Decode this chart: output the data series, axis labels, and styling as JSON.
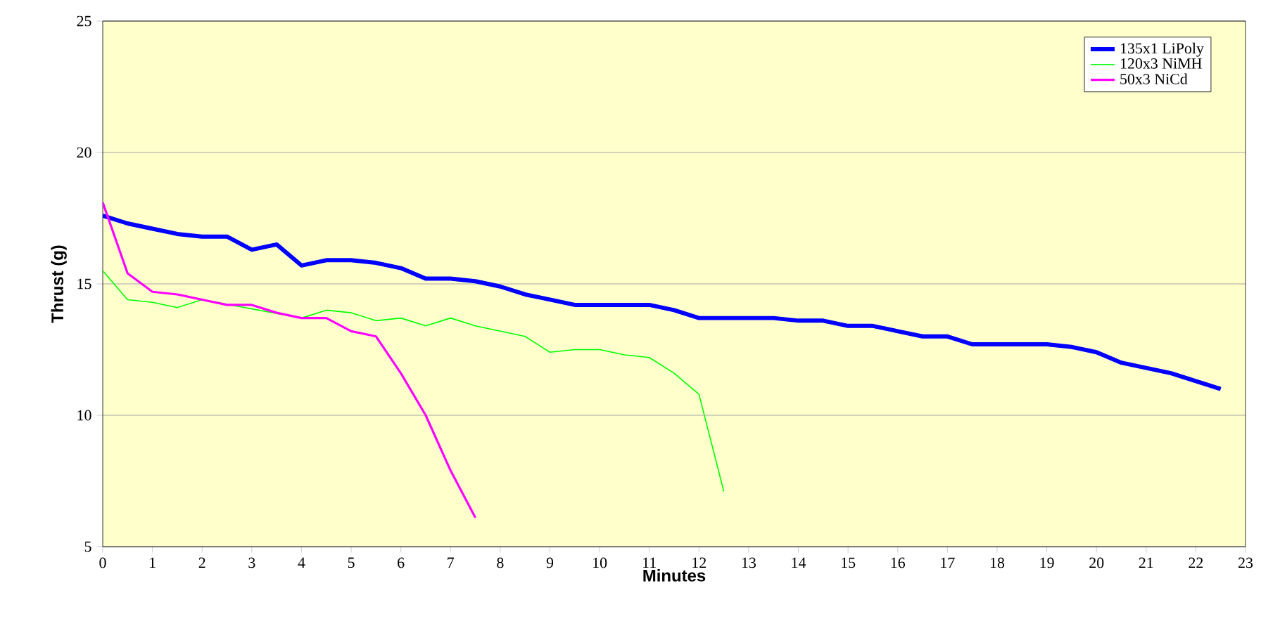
{
  "chart_data": {
    "type": "line",
    "xlabel": "Minutes",
    "ylabel": "Thrust (g)",
    "xlim": [
      0,
      23
    ],
    "ylim": [
      5,
      25
    ],
    "xticks": [
      0,
      1,
      2,
      3,
      4,
      5,
      6,
      7,
      8,
      9,
      10,
      11,
      12,
      13,
      14,
      15,
      16,
      17,
      18,
      19,
      20,
      21,
      22,
      23
    ],
    "yticks": [
      5,
      10,
      15,
      20,
      25
    ],
    "grid": "y",
    "legend": "top right",
    "series": [
      {
        "name": "135x1 LiPoly",
        "color": "#0000ff",
        "x": [
          0,
          0.5,
          1,
          1.5,
          2,
          2.5,
          3,
          3.5,
          4,
          4.5,
          5,
          5.5,
          6,
          6.5,
          7,
          7.5,
          8,
          8.5,
          9,
          9.5,
          10,
          10.5,
          11,
          11.5,
          12,
          12.5,
          13,
          13.5,
          14,
          14.5,
          15,
          15.5,
          16,
          16.5,
          17,
          17.5,
          18,
          18.5,
          19,
          19.5,
          20,
          20.5,
          21,
          21.5,
          22,
          22.5
        ],
        "values": [
          17.6,
          17.3,
          17.1,
          16.9,
          16.8,
          16.8,
          16.3,
          16.5,
          15.7,
          15.9,
          15.9,
          15.8,
          15.6,
          15.2,
          15.2,
          15.1,
          14.9,
          14.6,
          14.4,
          14.2,
          14.2,
          14.2,
          14.2,
          14.0,
          13.7,
          13.7,
          13.7,
          13.7,
          13.6,
          13.6,
          13.4,
          13.4,
          13.2,
          13.0,
          13.0,
          12.7,
          12.7,
          12.7,
          12.7,
          12.6,
          12.4,
          12.0,
          11.8,
          11.6,
          11.3,
          11.0
        ]
      },
      {
        "name": "120x3 NiMH",
        "color": "#00ff00",
        "x": [
          0,
          0.5,
          1,
          1.5,
          2,
          2.5,
          3,
          3.5,
          4,
          4.5,
          5,
          5.5,
          6,
          6.5,
          7,
          7.5,
          8,
          8.5,
          9,
          9.5,
          10,
          10.5,
          11,
          11.5,
          12,
          12.5
        ],
        "values": [
          15.5,
          14.4,
          14.3,
          14.1,
          14.4,
          null,
          null,
          null,
          13.7,
          14.0,
          13.9,
          13.6,
          13.7,
          13.4,
          13.7,
          13.4,
          13.2,
          13.0,
          12.4,
          12.5,
          12.5,
          12.3,
          12.2,
          11.6,
          10.8,
          7.1
        ]
      },
      {
        "name": "50x3 NiCd",
        "color": "#ff00ff",
        "x": [
          0,
          0.5,
          1,
          1.5,
          2,
          2.5,
          3,
          3.5,
          4,
          4.5,
          5,
          5.5,
          6,
          6.5,
          7,
          7.5
        ],
        "values": [
          18.1,
          15.4,
          14.7,
          14.6,
          14.4,
          14.2,
          14.2,
          13.9,
          13.7,
          13.7,
          13.2,
          13.0,
          11.6,
          10.0,
          7.9,
          6.1
        ]
      }
    ]
  }
}
